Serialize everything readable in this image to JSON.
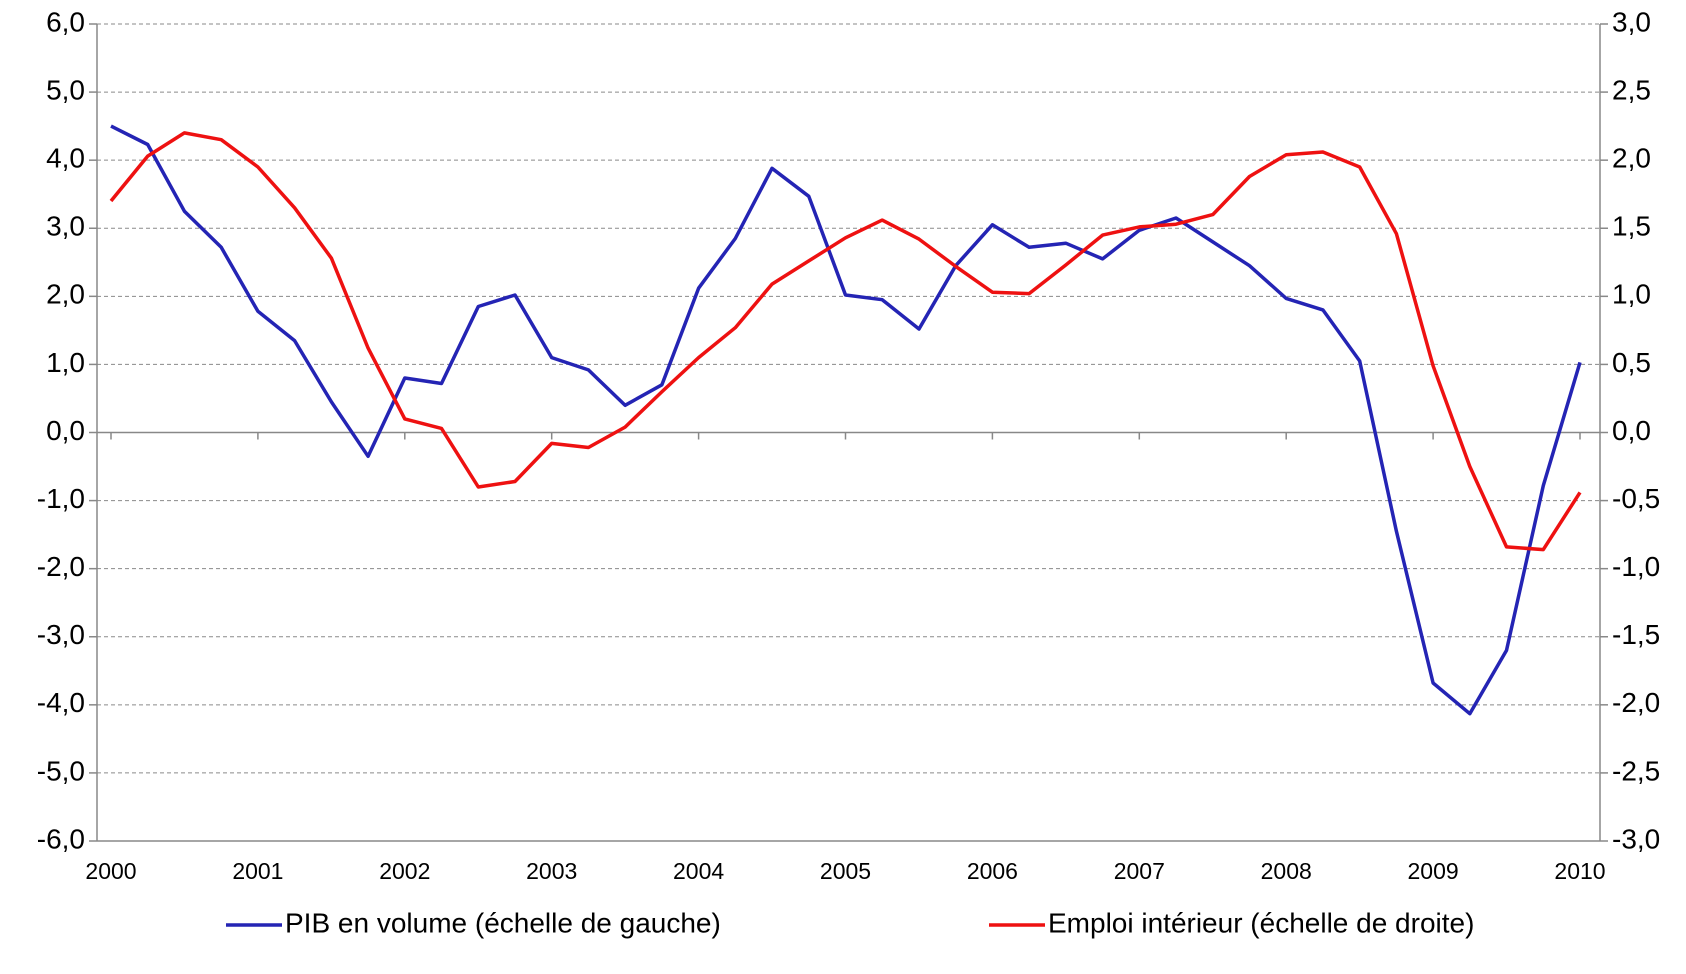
{
  "chart_data": {
    "type": "line",
    "categories": [
      "2000",
      null,
      null,
      null,
      "2001",
      null,
      null,
      null,
      "2002",
      null,
      null,
      null,
      "2003",
      null,
      null,
      null,
      "2004",
      null,
      null,
      null,
      "2005",
      null,
      null,
      null,
      "2006",
      null,
      null,
      null,
      "2007",
      null,
      null,
      null,
      "2008",
      null,
      null,
      null,
      "2009",
      null,
      null,
      null,
      "2010"
    ],
    "series": [
      {
        "name": "PIB en volume (échelle de gauche)",
        "color": "#2424b4",
        "axis": "y",
        "values": [
          4.5,
          4.23,
          3.25,
          2.72,
          1.78,
          1.35,
          0.45,
          -0.35,
          0.8,
          0.72,
          1.85,
          2.02,
          1.1,
          0.92,
          0.4,
          0.7,
          2.12,
          2.85,
          3.88,
          3.47,
          2.02,
          1.95,
          1.52,
          2.45,
          3.05,
          2.72,
          2.78,
          2.55,
          2.97,
          3.15,
          2.8,
          2.45,
          1.97,
          1.8,
          1.05,
          -1.45,
          -3.68,
          -4.13,
          -3.2,
          -0.78,
          1.03
        ]
      },
      {
        "name": "Emploi intérieur (échelle de droite)",
        "color": "#ee1111",
        "axis": "y2",
        "values": [
          1.7,
          2.03,
          2.2,
          2.15,
          1.95,
          1.65,
          1.28,
          0.62,
          0.1,
          0.03,
          -0.4,
          -0.36,
          -0.08,
          -0.11,
          0.04,
          0.3,
          0.55,
          0.77,
          1.09,
          1.26,
          1.43,
          1.56,
          1.42,
          1.22,
          1.03,
          1.02,
          1.23,
          1.45,
          1.51,
          1.53,
          1.6,
          1.88,
          2.04,
          2.06,
          1.95,
          1.46,
          0.49,
          -0.25,
          -0.84,
          -0.86,
          -0.44
        ]
      }
    ],
    "ylim": [
      -6,
      6
    ],
    "yticks": [
      {
        "value": -6,
        "label": "-6,0"
      },
      {
        "value": -5,
        "label": "-5,0"
      },
      {
        "value": -4,
        "label": "-4,0"
      },
      {
        "value": -3,
        "label": "-3,0"
      },
      {
        "value": -2,
        "label": "-2,0"
      },
      {
        "value": -1,
        "label": "-1,0"
      },
      {
        "value": 0,
        "label": "0,0"
      },
      {
        "value": 1,
        "label": "1,0"
      },
      {
        "value": 2,
        "label": "2,0"
      },
      {
        "value": 3,
        "label": "3,0"
      },
      {
        "value": 4,
        "label": "4,0"
      },
      {
        "value": 5,
        "label": "5,0"
      },
      {
        "value": 6,
        "label": "6,0"
      }
    ],
    "y2lim": [
      -3,
      3
    ],
    "y2ticks": [
      {
        "value": -3,
        "label": "-3,0"
      },
      {
        "value": -2.5,
        "label": "-2,5"
      },
      {
        "value": -2,
        "label": "-2,0"
      },
      {
        "value": -1.5,
        "label": "-1,5"
      },
      {
        "value": -1,
        "label": "-1,0"
      },
      {
        "value": -0.5,
        "label": "-0,5"
      },
      {
        "value": 0,
        "label": "0,0"
      },
      {
        "value": 0.5,
        "label": "0,5"
      },
      {
        "value": 1,
        "label": "1,0"
      },
      {
        "value": 1.5,
        "label": "1,5"
      },
      {
        "value": 2,
        "label": "2,0"
      },
      {
        "value": 2.5,
        "label": "2,5"
      },
      {
        "value": 3,
        "label": "3,0"
      }
    ],
    "grid": true,
    "legend": "bottom"
  }
}
